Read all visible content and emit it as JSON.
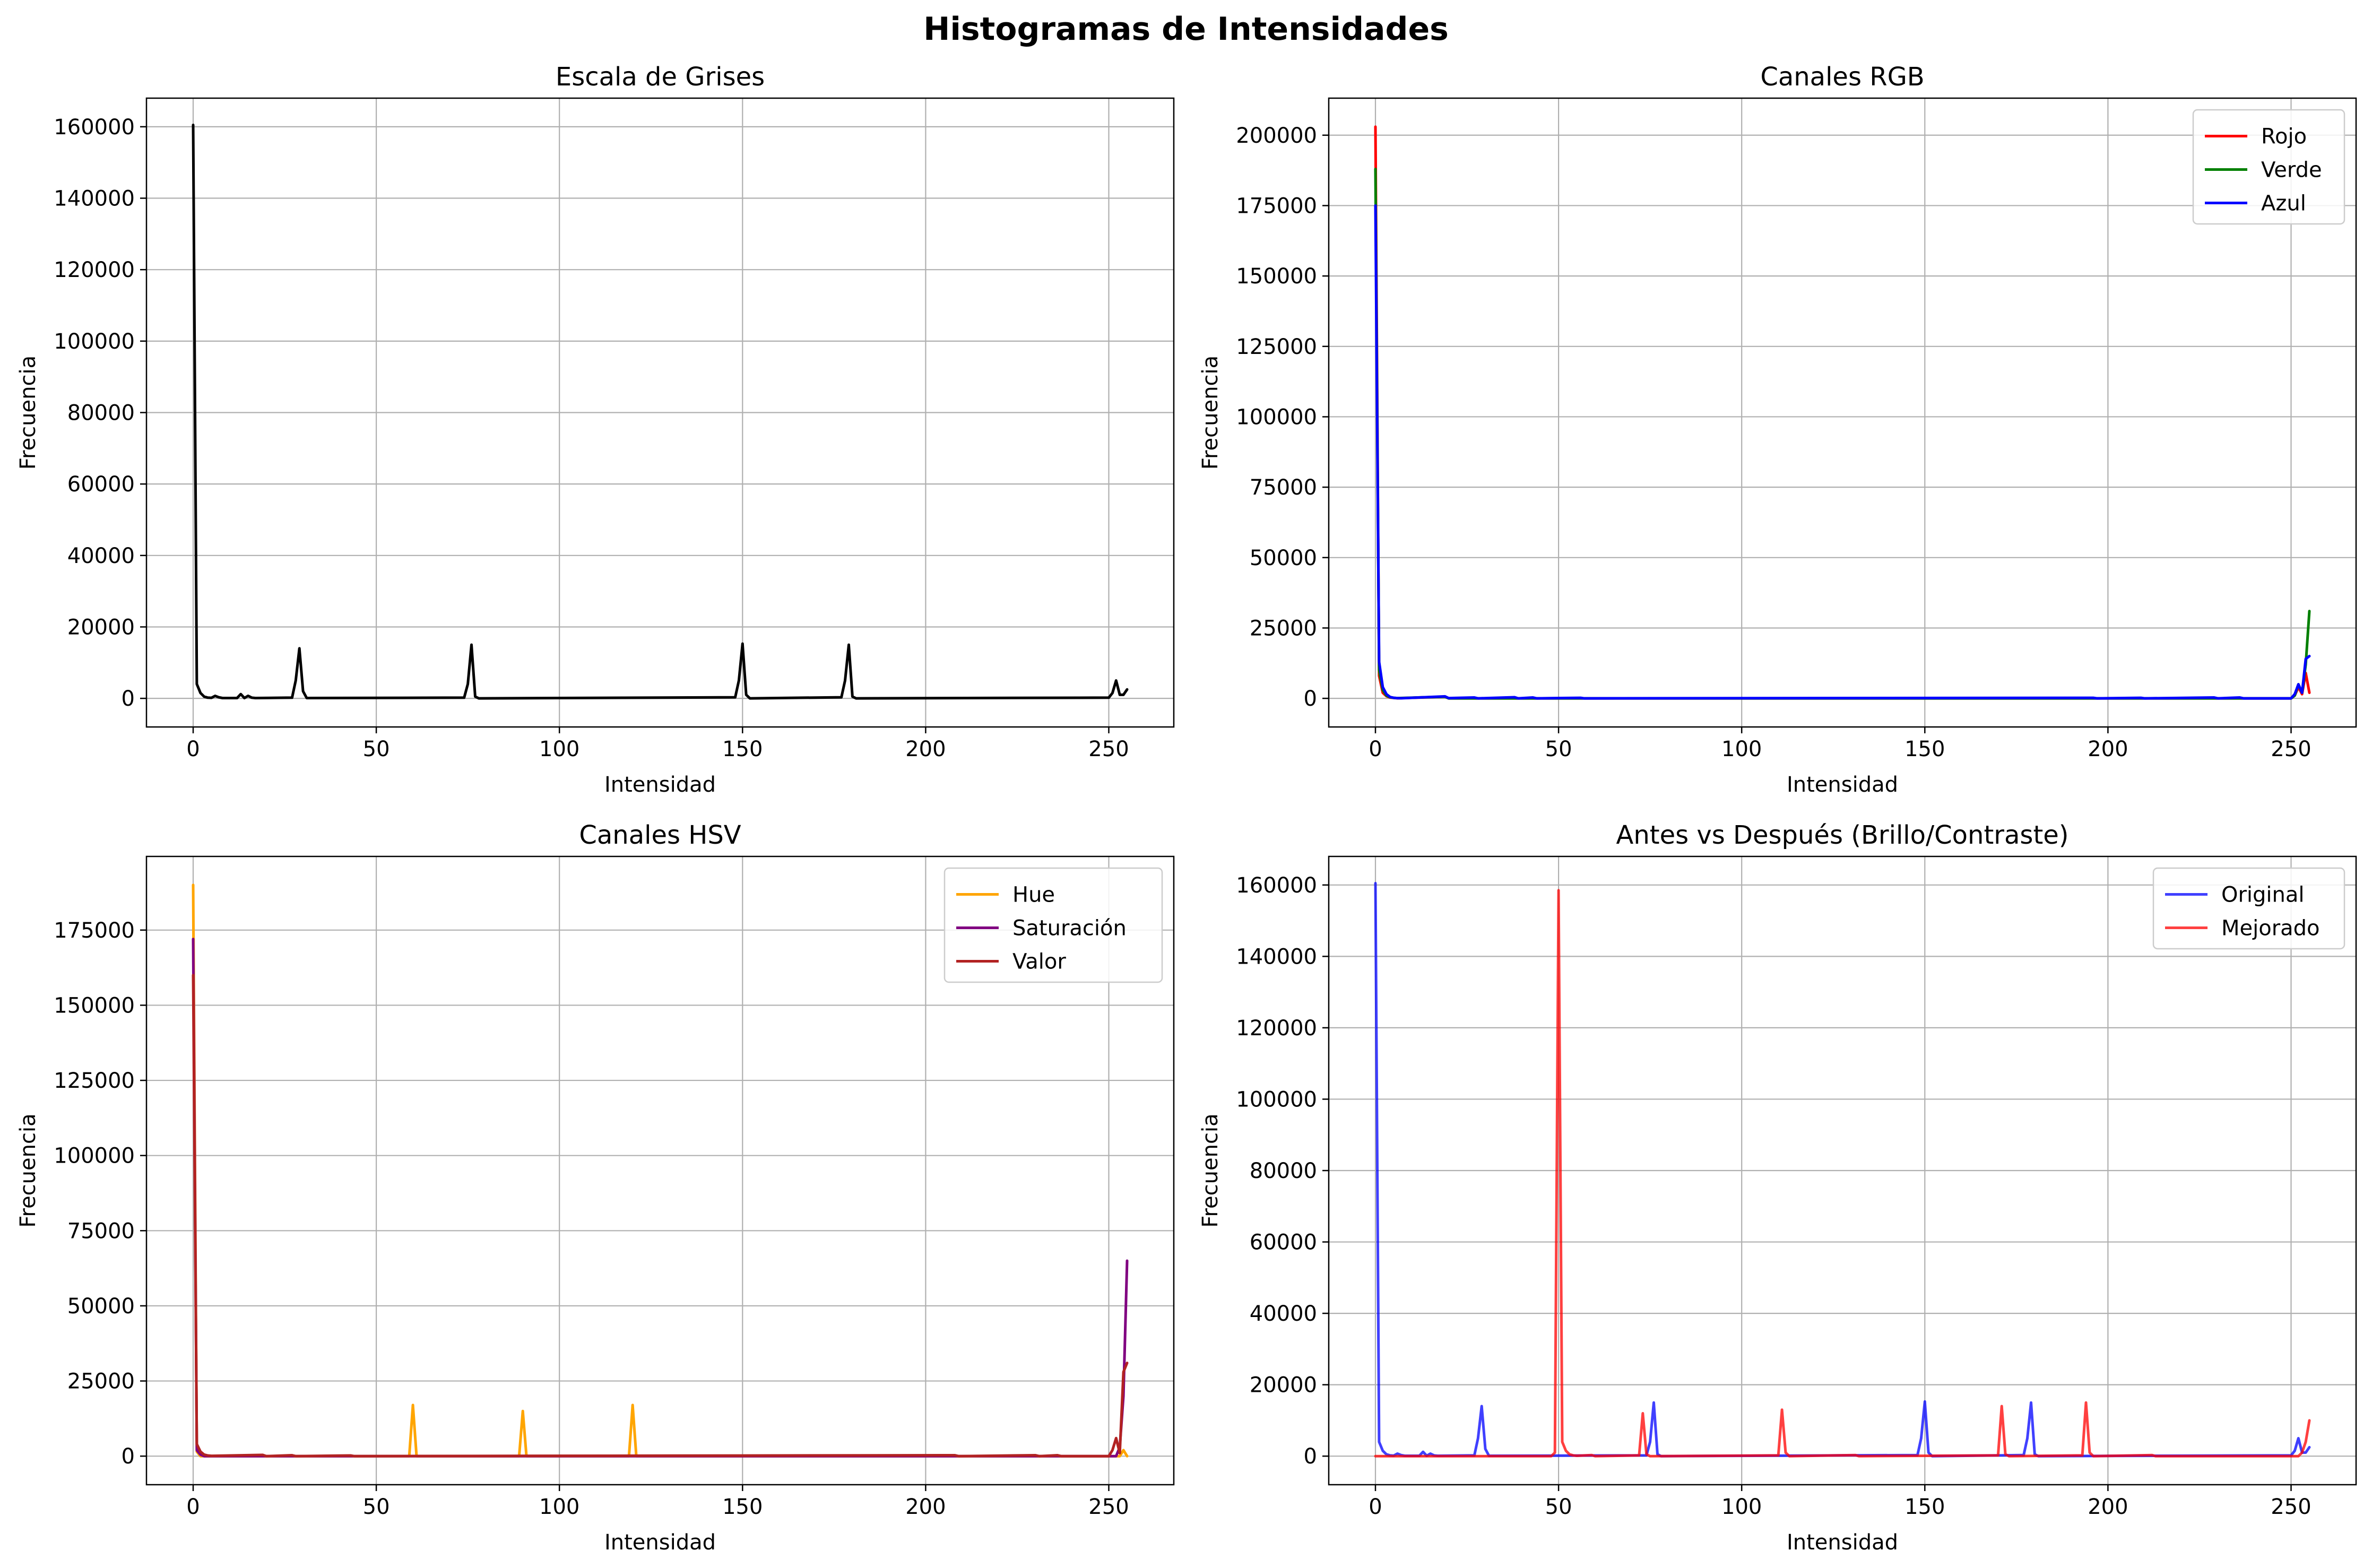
{
  "figure": {
    "suptitle": "Histogramas de Intensidades"
  },
  "chart_data": [
    {
      "type": "line",
      "title": "Escala de Grises",
      "xlabel": "Intensidad",
      "ylabel": "Frecuencia",
      "xlim": [
        -12.75,
        267.75
      ],
      "ylim": [
        -8000,
        168000
      ],
      "xticks": [
        0,
        50,
        100,
        150,
        200,
        250
      ],
      "yticks": [
        0,
        20000,
        40000,
        60000,
        80000,
        100000,
        120000,
        140000,
        160000
      ],
      "grid": true,
      "legend": null,
      "series": [
        {
          "color": "#000000",
          "alpha": 1,
          "points": [
            [
              0,
              160500
            ],
            [
              1,
              4000
            ],
            [
              2,
              1500
            ],
            [
              3,
              500
            ],
            [
              4,
              200
            ],
            [
              5,
              150
            ],
            [
              6,
              700
            ],
            [
              7,
              300
            ],
            [
              8,
              100
            ],
            [
              12,
              100
            ],
            [
              13,
              1200
            ],
            [
              14,
              100
            ],
            [
              15,
              700
            ],
            [
              16,
              200
            ],
            [
              17,
              100
            ],
            [
              27,
              200
            ],
            [
              28,
              5000
            ],
            [
              29,
              14000
            ],
            [
              30,
              2000
            ],
            [
              31,
              100
            ],
            [
              74,
              200
            ],
            [
              75,
              4000
            ],
            [
              76,
              15000
            ],
            [
              77,
              500
            ],
            [
              78,
              0
            ],
            [
              148,
              300
            ],
            [
              149,
              5000
            ],
            [
              150,
              15300
            ],
            [
              151,
              1000
            ],
            [
              152,
              0
            ],
            [
              177,
              300
            ],
            [
              178,
              5000
            ],
            [
              179,
              15000
            ],
            [
              180,
              500
            ],
            [
              181,
              0
            ],
            [
              250,
              200
            ],
            [
              251,
              1500
            ],
            [
              252,
              5000
            ],
            [
              253,
              1000
            ],
            [
              254,
              1000
            ],
            [
              255,
              2500
            ]
          ]
        }
      ]
    },
    {
      "type": "line",
      "title": "Canales RGB",
      "xlabel": "Intensidad",
      "ylabel": "Frecuencia",
      "xlim": [
        -12.75,
        267.75
      ],
      "ylim": [
        -10150,
        213150
      ],
      "xticks": [
        0,
        50,
        100,
        150,
        200,
        250
      ],
      "yticks": [
        0,
        25000,
        50000,
        75000,
        100000,
        125000,
        150000,
        175000,
        200000
      ],
      "grid": true,
      "legend": "top-right",
      "series": [
        {
          "name": "Rojo",
          "color": "#ff0000",
          "alpha": 1,
          "points": [
            [
              0,
              203000
            ],
            [
              1,
              8000
            ],
            [
              2,
              2000
            ],
            [
              3,
              800
            ],
            [
              4,
              300
            ],
            [
              5,
              150
            ],
            [
              6,
              50
            ],
            [
              19,
              600
            ],
            [
              20,
              0
            ],
            [
              250,
              0
            ],
            [
              251,
              1000
            ],
            [
              252,
              4000
            ],
            [
              253,
              1500
            ],
            [
              254,
              9000
            ],
            [
              255,
              2000
            ]
          ]
        },
        {
          "name": "Verde",
          "color": "#008000",
          "alpha": 1,
          "points": [
            [
              0,
              188000
            ],
            [
              1,
              10000
            ],
            [
              2,
              3000
            ],
            [
              3,
              1000
            ],
            [
              4,
              400
            ],
            [
              5,
              200
            ],
            [
              6,
              100
            ],
            [
              19,
              600
            ],
            [
              20,
              0
            ],
            [
              250,
              0
            ],
            [
              251,
              1000
            ],
            [
              252,
              5000
            ],
            [
              253,
              2000
            ],
            [
              254,
              12000
            ],
            [
              255,
              31000
            ]
          ]
        },
        {
          "name": "Azul",
          "color": "#0000ff",
          "alpha": 1,
          "points": [
            [
              0,
              175000
            ],
            [
              1,
              13000
            ],
            [
              2,
              4000
            ],
            [
              3,
              1500
            ],
            [
              4,
              500
            ],
            [
              5,
              200
            ],
            [
              6,
              100
            ],
            [
              7,
              50
            ],
            [
              19,
              700
            ],
            [
              20,
              100
            ],
            [
              27,
              300
            ],
            [
              28,
              0
            ],
            [
              38,
              400
            ],
            [
              39,
              0
            ],
            [
              43,
              300
            ],
            [
              44,
              0
            ],
            [
              56,
              200
            ],
            [
              57,
              0
            ],
            [
              196,
              200
            ],
            [
              197,
              0
            ],
            [
              209,
              200
            ],
            [
              210,
              0
            ],
            [
              229,
              300
            ],
            [
              230,
              0
            ],
            [
              236,
              300
            ],
            [
              237,
              0
            ],
            [
              250,
              0
            ],
            [
              251,
              1500
            ],
            [
              252,
              5000
            ],
            [
              253,
              2000
            ],
            [
              254,
              14000
            ],
            [
              255,
              15000
            ]
          ]
        }
      ]
    },
    {
      "type": "line",
      "title": "Canales HSV",
      "xlabel": "Intensidad",
      "ylabel": "Frecuencia",
      "xlim": [
        -12.75,
        267.75
      ],
      "ylim": [
        -9500,
        199500
      ],
      "xticks": [
        0,
        50,
        100,
        150,
        200,
        250
      ],
      "yticks": [
        0,
        25000,
        50000,
        75000,
        100000,
        125000,
        150000,
        175000
      ],
      "grid": true,
      "legend": "top-right",
      "series": [
        {
          "name": "Hue",
          "color": "#ffa500",
          "alpha": 1,
          "points": [
            [
              0,
              190000
            ],
            [
              1,
              1500
            ],
            [
              2,
              0
            ],
            [
              59,
              0
            ],
            [
              60,
              17000
            ],
            [
              61,
              0
            ],
            [
              89,
              0
            ],
            [
              90,
              15000
            ],
            [
              91,
              0
            ],
            [
              119,
              0
            ],
            [
              120,
              17000
            ],
            [
              121,
              0
            ],
            [
              253,
              0
            ],
            [
              254,
              2000
            ],
            [
              255,
              0
            ]
          ]
        },
        {
          "name": "Saturación",
          "color": "#800080",
          "alpha": 1,
          "points": [
            [
              0,
              172000
            ],
            [
              1,
              2000
            ],
            [
              2,
              500
            ],
            [
              3,
              0
            ],
            [
              252,
              0
            ],
            [
              253,
              3000
            ],
            [
              254,
              20000
            ],
            [
              255,
              65000
            ]
          ]
        },
        {
          "name": "Valor",
          "color": "#b22222",
          "alpha": 1,
          "points": [
            [
              0,
              160000
            ],
            [
              1,
              4000
            ],
            [
              2,
              1500
            ],
            [
              3,
              500
            ],
            [
              4,
              200
            ],
            [
              5,
              100
            ],
            [
              19,
              400
            ],
            [
              20,
              0
            ],
            [
              27,
              300
            ],
            [
              28,
              0
            ],
            [
              43,
              200
            ],
            [
              44,
              0
            ],
            [
              208,
              300
            ],
            [
              209,
              0
            ],
            [
              230,
              300
            ],
            [
              231,
              0
            ],
            [
              236,
              300
            ],
            [
              237,
              0
            ],
            [
              250,
              0
            ],
            [
              251,
              2000
            ],
            [
              252,
              6000
            ],
            [
              253,
              1000
            ],
            [
              254,
              28000
            ],
            [
              255,
              31000
            ]
          ]
        }
      ]
    },
    {
      "type": "line",
      "title": "Antes vs Después (Brillo/Contraste)",
      "xlabel": "Intensidad",
      "ylabel": "Frecuencia",
      "xlim": [
        -12.75,
        267.75
      ],
      "ylim": [
        -8000,
        168000
      ],
      "xticks": [
        0,
        50,
        100,
        150,
        200,
        250
      ],
      "yticks": [
        0,
        20000,
        40000,
        60000,
        80000,
        100000,
        120000,
        140000,
        160000
      ],
      "grid": true,
      "legend": "top-right",
      "series": [
        {
          "name": "Original",
          "color": "#0000ff",
          "alpha": 0.75,
          "points": [
            [
              0,
              160500
            ],
            [
              1,
              4000
            ],
            [
              2,
              1500
            ],
            [
              3,
              500
            ],
            [
              4,
              200
            ],
            [
              5,
              150
            ],
            [
              6,
              700
            ],
            [
              7,
              300
            ],
            [
              8,
              100
            ],
            [
              12,
              100
            ],
            [
              13,
              1200
            ],
            [
              14,
              100
            ],
            [
              15,
              700
            ],
            [
              16,
              200
            ],
            [
              17,
              100
            ],
            [
              27,
              200
            ],
            [
              28,
              5000
            ],
            [
              29,
              14000
            ],
            [
              30,
              2000
            ],
            [
              31,
              100
            ],
            [
              74,
              200
            ],
            [
              75,
              4000
            ],
            [
              76,
              15000
            ],
            [
              77,
              500
            ],
            [
              78,
              0
            ],
            [
              148,
              300
            ],
            [
              149,
              5000
            ],
            [
              150,
              15300
            ],
            [
              151,
              1000
            ],
            [
              152,
              0
            ],
            [
              177,
              300
            ],
            [
              178,
              5000
            ],
            [
              179,
              15000
            ],
            [
              180,
              500
            ],
            [
              181,
              0
            ],
            [
              250,
              200
            ],
            [
              251,
              1500
            ],
            [
              252,
              5000
            ],
            [
              253,
              1000
            ],
            [
              254,
              1000
            ],
            [
              255,
              2500
            ]
          ]
        },
        {
          "name": "Mejorado",
          "color": "#ff0000",
          "alpha": 0.75,
          "points": [
            [
              0,
              0
            ],
            [
              48,
              0
            ],
            [
              49,
              1000
            ],
            [
              50,
              158500
            ],
            [
              51,
              4000
            ],
            [
              52,
              1500
            ],
            [
              53,
              500
            ],
            [
              54,
              200
            ],
            [
              55,
              100
            ],
            [
              59,
              300
            ],
            [
              60,
              0
            ],
            [
              72,
              200
            ],
            [
              73,
              12000
            ],
            [
              74,
              500
            ],
            [
              75,
              0
            ],
            [
              110,
              200
            ],
            [
              111,
              13000
            ],
            [
              112,
              1000
            ],
            [
              113,
              0
            ],
            [
              131,
              300
            ],
            [
              132,
              0
            ],
            [
              170,
              200
            ],
            [
              171,
              14000
            ],
            [
              172,
              500
            ],
            [
              173,
              0
            ],
            [
              193,
              200
            ],
            [
              194,
              15000
            ],
            [
              195,
              1000
            ],
            [
              196,
              0
            ],
            [
              212,
              300
            ],
            [
              213,
              0
            ],
            [
              252,
              0
            ],
            [
              253,
              1000
            ],
            [
              254,
              4000
            ],
            [
              255,
              10000
            ]
          ]
        }
      ]
    }
  ]
}
